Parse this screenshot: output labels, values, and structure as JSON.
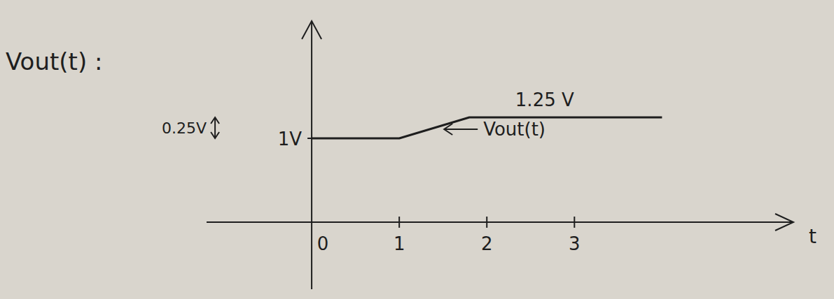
{
  "chart_data": {
    "type": "line",
    "title": "Vout(t) :",
    "x_label": "t",
    "x": [
      0,
      1,
      1.8,
      4
    ],
    "values": [
      1,
      1,
      1.25,
      1.25
    ],
    "color": "#1e1e1e",
    "xlim": [
      -1.2,
      5.5
    ],
    "xticks": [
      0,
      1,
      2,
      3
    ],
    "ylim": [
      -0.8,
      2.4
    ],
    "yticks": [
      {
        "value": 1,
        "label": "1V"
      }
    ],
    "annotations": [
      "1.25 V",
      "0.25V",
      "Vout(t)"
    ],
    "grid": false
  }
}
